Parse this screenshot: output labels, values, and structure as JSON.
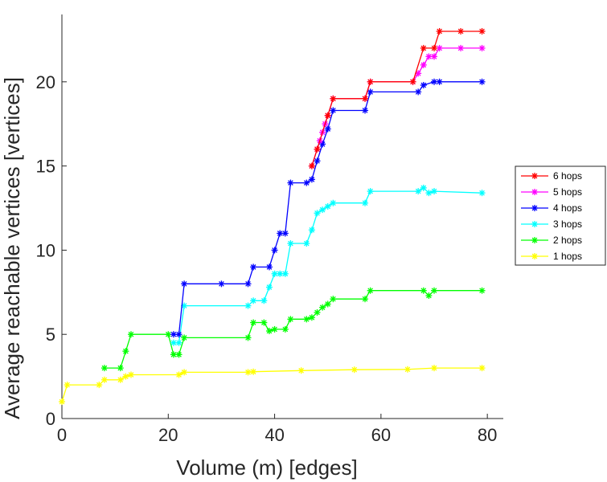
{
  "chart_data": {
    "type": "line",
    "title": "",
    "xlabel": "Volume (m) [edges]",
    "ylabel": "Average reachable vertices [vertices]",
    "xlim": [
      0,
      83
    ],
    "ylim": [
      0,
      24
    ],
    "xticks": [
      0,
      20,
      40,
      60,
      80
    ],
    "yticks": [
      0,
      5,
      10,
      15,
      20
    ],
    "grid": false,
    "legend_position": "right",
    "marker": "asterisk",
    "series": [
      {
        "name": "6 hops",
        "color": "#ff0000",
        "x": [
          47,
          48,
          50,
          51,
          57,
          58,
          66,
          68,
          70,
          71,
          75,
          79
        ],
        "y": [
          15,
          16,
          18,
          19,
          19,
          20,
          20,
          22,
          22,
          23,
          23,
          23
        ]
      },
      {
        "name": "5 hops",
        "color": "#ff00ff",
        "x": [
          47,
          48,
          48.5,
          49,
          49.5,
          50,
          51,
          57,
          58,
          66,
          67,
          68,
          69,
          70,
          71,
          75,
          79
        ],
        "y": [
          15,
          16,
          16.5,
          17,
          17.5,
          18,
          19,
          19,
          20,
          20,
          20.5,
          21,
          21.5,
          21.5,
          22,
          22,
          22
        ]
      },
      {
        "name": "4 hops",
        "color": "#0000ff",
        "x": [
          21,
          22,
          23,
          30,
          35,
          36,
          39,
          40,
          41,
          42,
          43,
          46,
          47,
          48,
          49,
          50,
          51,
          57,
          58,
          67,
          68,
          70,
          71,
          79
        ],
        "y": [
          5,
          5,
          8,
          8,
          8,
          9,
          9,
          10,
          11,
          11,
          14,
          14,
          14.2,
          15.3,
          16.3,
          17.2,
          18.3,
          18.3,
          19.4,
          19.4,
          19.8,
          20,
          20,
          20
        ]
      },
      {
        "name": "3 hops",
        "color": "#00ffff",
        "x": [
          21,
          22,
          23,
          35,
          36,
          38,
          39,
          40,
          41,
          42,
          43,
          46,
          47,
          48,
          49,
          50,
          51,
          57,
          58,
          67,
          68,
          69,
          70,
          79
        ],
        "y": [
          4.5,
          4.5,
          6.7,
          6.7,
          7,
          7,
          7.8,
          8.6,
          8.6,
          8.6,
          10.4,
          10.4,
          11.2,
          12.2,
          12.4,
          12.6,
          12.8,
          12.8,
          13.5,
          13.5,
          13.7,
          13.4,
          13.5,
          13.4
        ]
      },
      {
        "name": "2 hops",
        "color": "#00ff00",
        "x": [
          8,
          11,
          12,
          13,
          20,
          21,
          22,
          23,
          35,
          36,
          38,
          39,
          40,
          42,
          43,
          46,
          47,
          48,
          49,
          50,
          51,
          57,
          58,
          68,
          69,
          70,
          79
        ],
        "y": [
          3,
          3,
          4,
          5,
          5,
          3.8,
          3.8,
          4.8,
          4.8,
          5.7,
          5.7,
          5.2,
          5.3,
          5.3,
          5.9,
          5.9,
          6.0,
          6.3,
          6.6,
          6.8,
          7.1,
          7.1,
          7.6,
          7.6,
          7.3,
          7.6,
          7.6
        ]
      },
      {
        "name": "1 hops",
        "color": "#ffff00",
        "x": [
          0,
          1,
          7,
          8,
          11,
          12,
          13,
          22,
          23,
          35,
          36,
          45,
          55,
          65,
          70,
          79
        ],
        "y": [
          1,
          2,
          2,
          2.3,
          2.3,
          2.5,
          2.6,
          2.6,
          2.75,
          2.75,
          2.78,
          2.85,
          2.9,
          2.92,
          3,
          3
        ]
      }
    ]
  }
}
